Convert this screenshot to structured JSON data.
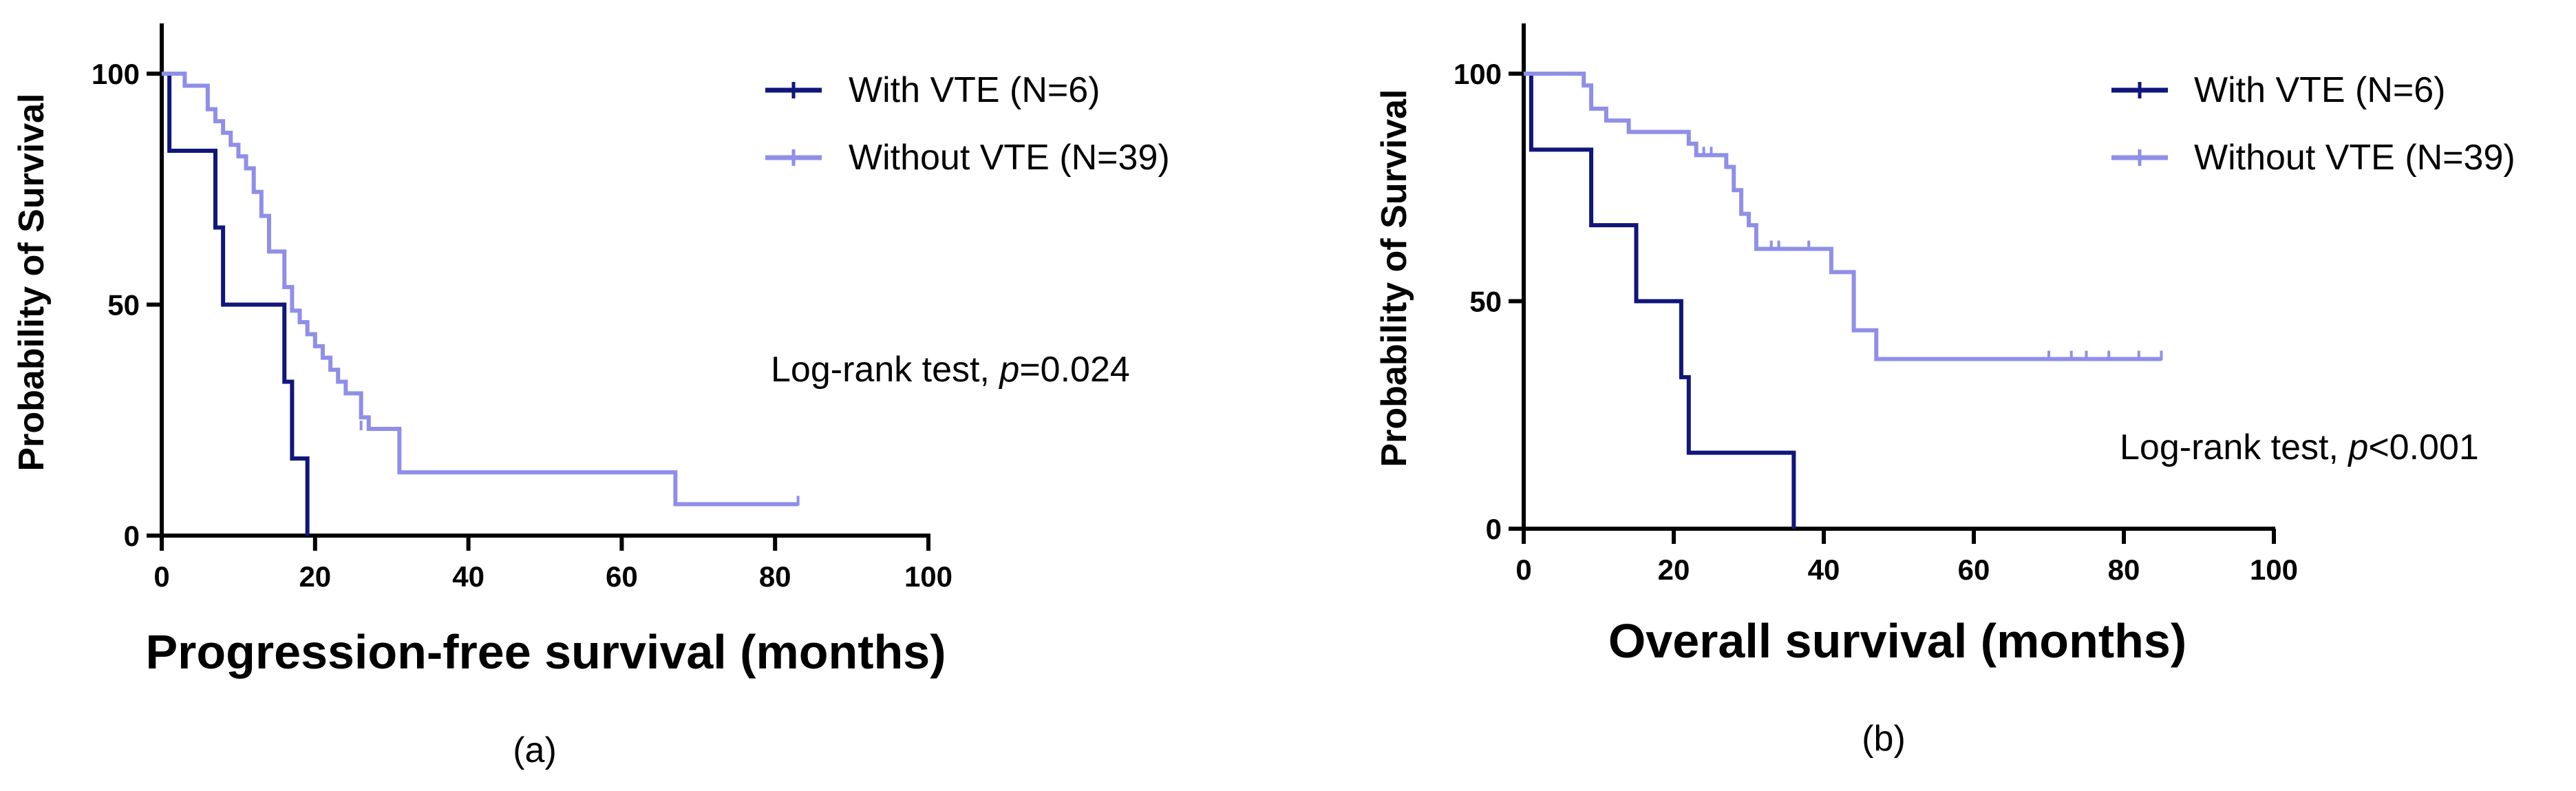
{
  "chart_data": [
    {
      "type": "line",
      "subtype": "kaplan-meier",
      "caption": "(a)",
      "xlabel": "Progression-free survival (months)",
      "ylabel": "Probability of Survival",
      "xlim": [
        0,
        100
      ],
      "ylim": [
        0,
        100
      ],
      "xticks": [
        "0",
        "20",
        "40",
        "60",
        "80",
        "100"
      ],
      "yticks": [
        "0",
        "50",
        "100"
      ],
      "annotation": {
        "prefix": "Log-rank test, ",
        "p": "p",
        "value": "=0.024"
      },
      "legend_position": "top-right",
      "series": [
        {
          "name": "With VTE (N=6)",
          "color": "#10167a",
          "steps": [
            [
              0,
              100
            ],
            [
              1,
              83.3
            ],
            [
              7,
              66.7
            ],
            [
              8,
              50
            ],
            [
              16,
              33.3
            ],
            [
              17,
              16.7
            ],
            [
              19,
              0
            ]
          ],
          "censored": []
        },
        {
          "name": "Without VTE (N=39)",
          "color": "#8f8fe9",
          "steps": [
            [
              0,
              100
            ],
            [
              3,
              97.4
            ],
            [
              6,
              92.3
            ],
            [
              7,
              89.7
            ],
            [
              8,
              87.2
            ],
            [
              9,
              84.6
            ],
            [
              10,
              82.1
            ],
            [
              11,
              79.5
            ],
            [
              12,
              74.4
            ],
            [
              13,
              69.2
            ],
            [
              14,
              61.5
            ],
            [
              16,
              53.8
            ],
            [
              17,
              48.7
            ],
            [
              18,
              46.2
            ],
            [
              19,
              43.6
            ],
            [
              20,
              41
            ],
            [
              21,
              38.5
            ],
            [
              22,
              35.9
            ],
            [
              23,
              33.3
            ],
            [
              24,
              30.8
            ],
            [
              26,
              25.6
            ],
            [
              27,
              23.1
            ],
            [
              31,
              13.7
            ],
            [
              67,
              6.8
            ],
            [
              83,
              6.8
            ]
          ],
          "censored": [
            [
              26,
              23.1
            ],
            [
              83,
              6.8
            ]
          ]
        }
      ]
    },
    {
      "type": "line",
      "subtype": "kaplan-meier",
      "caption": "(b)",
      "xlabel": "Overall survival (months)",
      "ylabel": "Probability of Survival",
      "xlim": [
        0,
        100
      ],
      "ylim": [
        0,
        100
      ],
      "xticks": [
        "0",
        "20",
        "40",
        "60",
        "80",
        "100"
      ],
      "yticks": [
        "0",
        "50",
        "100"
      ],
      "annotation": {
        "prefix": "Log-rank test, ",
        "p": "p",
        "value": "<0.001"
      },
      "legend_position": "top-right",
      "series": [
        {
          "name": "With VTE (N=6)",
          "color": "#10167a",
          "steps": [
            [
              0,
              100
            ],
            [
              1,
              83.3
            ],
            [
              9,
              66.7
            ],
            [
              15,
              50
            ],
            [
              21,
              33.3
            ],
            [
              22,
              16.7
            ],
            [
              36,
              0
            ]
          ],
          "censored": []
        },
        {
          "name": "Without VTE (N=39)",
          "color": "#8f8fe9",
          "steps": [
            [
              0,
              100
            ],
            [
              8,
              97.4
            ],
            [
              9,
              92.3
            ],
            [
              11,
              89.7
            ],
            [
              14,
              87.2
            ],
            [
              22,
              84.6
            ],
            [
              23,
              82.1
            ],
            [
              27,
              79.5
            ],
            [
              28,
              74.4
            ],
            [
              29,
              69.2
            ],
            [
              30,
              66.7
            ],
            [
              31,
              61.5
            ],
            [
              41,
              56.4
            ],
            [
              44,
              43.6
            ],
            [
              47,
              37.3
            ],
            [
              85,
              37.3
            ]
          ],
          "censored": [
            [
              23,
              82.1
            ],
            [
              24,
              82.1
            ],
            [
              25,
              82.1
            ],
            [
              31,
              61.5
            ],
            [
              33,
              61.5
            ],
            [
              34,
              61.5
            ],
            [
              38,
              61.5
            ],
            [
              70,
              37.3
            ],
            [
              73,
              37.3
            ],
            [
              75,
              37.3
            ],
            [
              78,
              37.3
            ],
            [
              82,
              37.3
            ],
            [
              85,
              37.3
            ]
          ]
        }
      ]
    }
  ]
}
